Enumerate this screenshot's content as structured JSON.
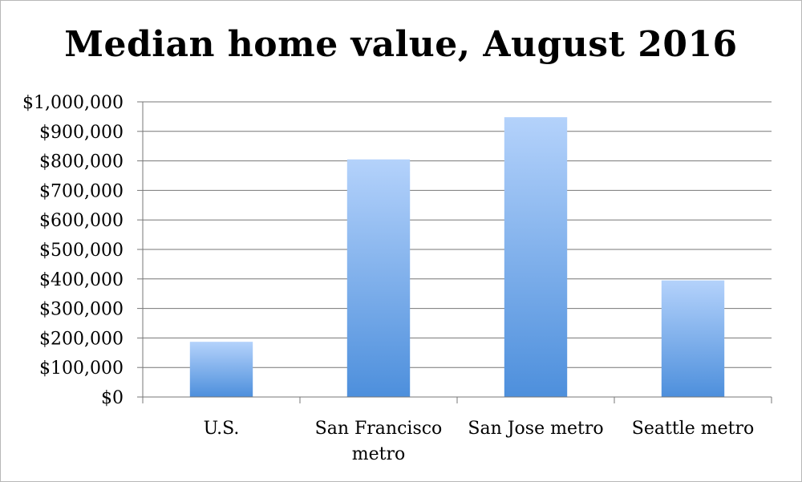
{
  "chart_data": {
    "type": "bar",
    "title": "Median home value, August 2016",
    "categories": [
      "U.S.",
      "San Francisco metro",
      "San Jose metro",
      "Seattle metro"
    ],
    "category_lines": [
      [
        "U.S."
      ],
      [
        "San Francisco",
        "metro"
      ],
      [
        "San Jose metro"
      ],
      [
        "Seattle metro"
      ]
    ],
    "values": [
      187000,
      805000,
      948000,
      395000
    ],
    "ylim": [
      0,
      1000000
    ],
    "yticks": [
      0,
      100000,
      200000,
      300000,
      400000,
      500000,
      600000,
      700000,
      800000,
      900000,
      1000000
    ],
    "ytick_labels": [
      "$0",
      "$100,000",
      "$200,000",
      "$300,000",
      "$400,000",
      "$500,000",
      "$600,000",
      "$700,000",
      "$800,000",
      "$900,000",
      "$1,000,000"
    ],
    "grid": true,
    "legend": "none",
    "colors": {
      "bar_top": "#b4d2fb",
      "bar_bottom": "#4d8fdc",
      "grid": "#777777",
      "axis": "#777777"
    }
  }
}
